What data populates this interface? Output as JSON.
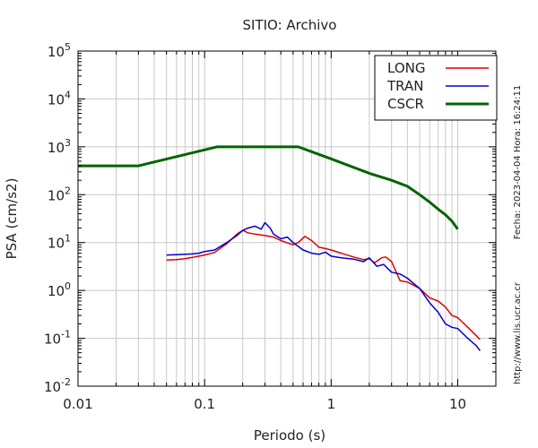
{
  "chart_data": {
    "type": "line",
    "title": "SITIO: Archivo",
    "xlabel": "Periodo (s)",
    "ylabel": "PSA (cm/s2)",
    "xscale": "log",
    "yscale": "log",
    "xlim": [
      0.01,
      20
    ],
    "ylim": [
      0.01,
      100000
    ],
    "x_ticks": [
      {
        "value": 0.01,
        "label": "0.01"
      },
      {
        "value": 0.1,
        "label": "0.1"
      },
      {
        "value": 1,
        "label": "1"
      },
      {
        "value": 10,
        "label": "10"
      }
    ],
    "y_ticks": [
      {
        "value": 0.01,
        "base": "10",
        "exp": "-2"
      },
      {
        "value": 0.1,
        "base": "10",
        "exp": "-1"
      },
      {
        "value": 1,
        "base": "10",
        "exp": "0"
      },
      {
        "value": 10,
        "base": "10",
        "exp": "1"
      },
      {
        "value": 100,
        "base": "10",
        "exp": "2"
      },
      {
        "value": 1000,
        "base": "10",
        "exp": "3"
      },
      {
        "value": 10000,
        "base": "10",
        "exp": "4"
      },
      {
        "value": 100000,
        "base": "10",
        "exp": "5"
      }
    ],
    "grid": true,
    "legend_position": "top-right",
    "side_annotations": {
      "date_stamp": "Fecha: 2023-04-04  Hora: 16:24:11",
      "url": "http://www.lis.ucr.ac.cr"
    },
    "series": [
      {
        "name": "LONG",
        "color": "#e00000",
        "points": [
          [
            0.05,
            4.3
          ],
          [
            0.06,
            4.4
          ],
          [
            0.07,
            4.6
          ],
          [
            0.08,
            4.9
          ],
          [
            0.09,
            5.2
          ],
          [
            0.1,
            5.5
          ],
          [
            0.12,
            6.2
          ],
          [
            0.15,
            9.5
          ],
          [
            0.18,
            15
          ],
          [
            0.2,
            18
          ],
          [
            0.22,
            16
          ],
          [
            0.25,
            15
          ],
          [
            0.3,
            14
          ],
          [
            0.35,
            13
          ],
          [
            0.4,
            11
          ],
          [
            0.5,
            9
          ],
          [
            0.55,
            10
          ],
          [
            0.62,
            13.5
          ],
          [
            0.7,
            11
          ],
          [
            0.8,
            8
          ],
          [
            0.9,
            7.5
          ],
          [
            1.0,
            7.0
          ],
          [
            1.2,
            6.0
          ],
          [
            1.5,
            5.0
          ],
          [
            1.8,
            4.4
          ],
          [
            2.0,
            4.6
          ],
          [
            2.2,
            3.8
          ],
          [
            2.5,
            4.8
          ],
          [
            2.7,
            5.0
          ],
          [
            3.0,
            4.0
          ],
          [
            3.5,
            1.6
          ],
          [
            4.0,
            1.5
          ],
          [
            5.0,
            1.1
          ],
          [
            6.0,
            0.7
          ],
          [
            7.0,
            0.6
          ],
          [
            8.0,
            0.45
          ],
          [
            9.0,
            0.3
          ],
          [
            10.0,
            0.27
          ],
          [
            12.0,
            0.17
          ],
          [
            15.0,
            0.095
          ]
        ]
      },
      {
        "name": "TRAN",
        "color": "#0000d0",
        "points": [
          [
            0.05,
            5.5
          ],
          [
            0.06,
            5.6
          ],
          [
            0.07,
            5.7
          ],
          [
            0.08,
            5.8
          ],
          [
            0.09,
            6.0
          ],
          [
            0.1,
            6.5
          ],
          [
            0.12,
            7.0
          ],
          [
            0.15,
            10
          ],
          [
            0.18,
            14
          ],
          [
            0.2,
            18
          ],
          [
            0.22,
            20
          ],
          [
            0.25,
            22
          ],
          [
            0.28,
            19
          ],
          [
            0.3,
            26
          ],
          [
            0.33,
            20
          ],
          [
            0.35,
            15
          ],
          [
            0.4,
            12
          ],
          [
            0.45,
            13
          ],
          [
            0.5,
            10
          ],
          [
            0.6,
            7.0
          ],
          [
            0.7,
            6.0
          ],
          [
            0.8,
            5.7
          ],
          [
            0.9,
            6.3
          ],
          [
            1.0,
            5.2
          ],
          [
            1.2,
            4.8
          ],
          [
            1.5,
            4.5
          ],
          [
            1.8,
            4.0
          ],
          [
            2.0,
            4.8
          ],
          [
            2.3,
            3.2
          ],
          [
            2.6,
            3.5
          ],
          [
            3.0,
            2.4
          ],
          [
            3.5,
            2.2
          ],
          [
            4.0,
            1.8
          ],
          [
            5.0,
            1.1
          ],
          [
            6.0,
            0.55
          ],
          [
            7.0,
            0.35
          ],
          [
            8.0,
            0.2
          ],
          [
            9.0,
            0.17
          ],
          [
            10.0,
            0.16
          ],
          [
            12.0,
            0.1
          ],
          [
            14.0,
            0.07
          ],
          [
            15.0,
            0.055
          ]
        ]
      },
      {
        "name": "CSCR",
        "color": "#006400",
        "points": [
          [
            0.01,
            400
          ],
          [
            0.03,
            400
          ],
          [
            0.125,
            1000
          ],
          [
            0.55,
            1000
          ],
          [
            1.0,
            560
          ],
          [
            2.0,
            280
          ],
          [
            3.0,
            200
          ],
          [
            4.0,
            150
          ],
          [
            5.0,
            100
          ],
          [
            6.0,
            70
          ],
          [
            7.0,
            50
          ],
          [
            8.0,
            38
          ],
          [
            9.0,
            28
          ],
          [
            10.0,
            19
          ]
        ]
      }
    ]
  }
}
